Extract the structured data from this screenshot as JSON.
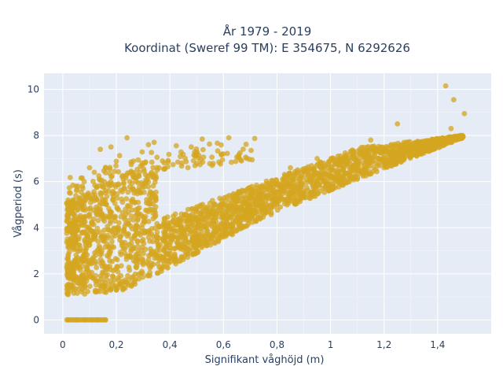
{
  "chart_data": {
    "type": "scatter",
    "title_lines": [
      "År 1979 - 2019",
      "Koordinat (Sweref 99 TM): E 354675, N 6292626"
    ],
    "xlabel": "Signifikant våghöjd (m)",
    "ylabel": "Vågperiod (s)",
    "xlim": [
      -0.07,
      1.6
    ],
    "ylim": [
      -0.6,
      10.7
    ],
    "x_ticks": [
      0,
      0.2,
      0.4,
      0.6,
      0.8,
      1,
      1.2,
      1.4
    ],
    "x_tick_labels": [
      "0",
      "0,2",
      "0,4",
      "0,6",
      "0,8",
      "1",
      "1,2",
      "1,4"
    ],
    "y_ticks": [
      0,
      2,
      4,
      6,
      8,
      10
    ],
    "y_tick_labels": [
      "0",
      "2",
      "4",
      "6",
      "8",
      "10"
    ],
    "grid": true,
    "plot_background": "#e5ecf6",
    "marker_color": "#d4a520",
    "points_approx": [
      [
        0.02,
        0
      ],
      [
        0.05,
        0
      ],
      [
        0.08,
        0
      ],
      [
        0.11,
        0
      ],
      [
        0.13,
        0
      ],
      [
        0.16,
        0
      ],
      [
        0.02,
        1.1
      ],
      [
        0.02,
        5.2
      ],
      [
        0.05,
        5.8
      ],
      [
        0.08,
        6.0
      ],
      [
        0.1,
        6.6
      ],
      [
        0.14,
        7.4
      ],
      [
        0.18,
        7.5
      ],
      [
        0.24,
        7.9
      ],
      [
        0.32,
        7.6
      ],
      [
        0.48,
        7.5
      ],
      [
        0.6,
        7.2
      ],
      [
        0.2,
        1.3
      ],
      [
        0.3,
        2.4
      ],
      [
        0.4,
        3.0
      ],
      [
        0.5,
        3.4
      ],
      [
        0.6,
        3.9
      ],
      [
        0.7,
        4.5
      ],
      [
        0.8,
        5.0
      ],
      [
        0.9,
        5.3
      ],
      [
        1.0,
        5.7
      ],
      [
        1.1,
        6.1
      ],
      [
        1.2,
        6.6
      ],
      [
        1.3,
        7.1
      ],
      [
        1.4,
        7.8
      ],
      [
        1.45,
        8.3
      ],
      [
        1.5,
        8.95
      ],
      [
        1.46,
        9.55
      ],
      [
        1.43,
        10.15
      ],
      [
        1.25,
        8.5
      ],
      [
        1.15,
        7.8
      ],
      [
        0.95,
        7.0
      ],
      [
        0.85,
        6.6
      ],
      [
        0.18,
        1.7
      ],
      [
        0.35,
        3.6
      ],
      [
        0.56,
        3.7
      ]
    ]
  }
}
